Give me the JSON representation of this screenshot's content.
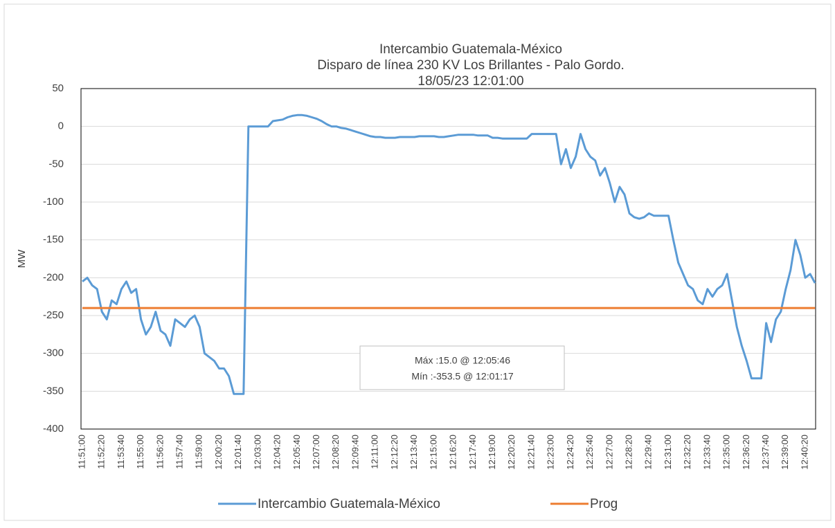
{
  "chart_data": {
    "type": "line",
    "title": "Intercambio Guatemala-México",
    "subtitle": [
      "Disparo de línea 230 KV Los Brillantes - Palo Gordo.",
      "18/05/23 12:01:00"
    ],
    "y_label": "MW",
    "annotations": [
      "Máx :15.0 @ 12:05:46",
      "Mín :-353.5 @ 12:01:17"
    ],
    "categories": [
      "11:51:00",
      null,
      null,
      null,
      "11:52:20",
      null,
      null,
      null,
      "11:53:40",
      null,
      null,
      null,
      "11:55:00",
      null,
      null,
      null,
      "11:56:20",
      null,
      null,
      null,
      "11:57:40",
      null,
      null,
      null,
      "11:59:00",
      null,
      null,
      null,
      "12:00:20",
      null,
      null,
      null,
      "12:01:40",
      null,
      null,
      null,
      "12:03:00",
      null,
      null,
      null,
      "12:04:20",
      null,
      null,
      null,
      "12:05:40",
      null,
      null,
      null,
      "12:07:00",
      null,
      null,
      null,
      "12:08:20",
      null,
      null,
      null,
      "12:09:40",
      null,
      null,
      null,
      "12:11:00",
      null,
      null,
      null,
      "12:12:20",
      null,
      null,
      null,
      "12:13:40",
      null,
      null,
      null,
      "12:15:00",
      null,
      null,
      null,
      "12:16:20",
      null,
      null,
      null,
      "12:17:40",
      null,
      null,
      null,
      "12:19:00",
      null,
      null,
      null,
      "12:20:20",
      null,
      null,
      null,
      "12:21:40",
      null,
      null,
      null,
      "12:23:00",
      null,
      null,
      null,
      "12:24:20",
      null,
      null,
      null,
      "12:25:40",
      null,
      null,
      null,
      "12:27:00",
      null,
      null,
      null,
      "12:28:20",
      null,
      null,
      null,
      "12:29:40",
      null,
      null,
      null,
      "12:31:00",
      null,
      null,
      null,
      "12:32:20",
      null,
      null,
      null,
      "12:33:40",
      null,
      null,
      null,
      "12:35:00",
      null,
      null,
      null,
      "12:36:20",
      null,
      null,
      null,
      "12:37:40",
      null,
      null,
      null,
      "12:39:00",
      null,
      null,
      null,
      "12:40:20",
      null,
      null
    ],
    "series": [
      {
        "name": "Intercambio Guatemala-México",
        "color": "#5b9bd5",
        "values": [
          -205,
          -200,
          -210,
          -215,
          -245,
          -255,
          -230,
          -235,
          -215,
          -205,
          -220,
          -215,
          -255,
          -275,
          -265,
          -245,
          -270,
          -275,
          -290,
          -255,
          -260,
          -265,
          -255,
          -250,
          -265,
          -300,
          -305,
          -310,
          -320,
          -320,
          -330,
          -353.5,
          -353.5,
          -353.5,
          0,
          0,
          0,
          0,
          0,
          7,
          8,
          9,
          12,
          14,
          15,
          15,
          14,
          12,
          10,
          7,
          3,
          0,
          0,
          -2,
          -3,
          -5,
          -7,
          -9,
          -11,
          -13,
          -14,
          -14,
          -15,
          -15,
          -15,
          -14,
          -14,
          -14,
          -14,
          -13,
          -13,
          -13,
          -13,
          -14,
          -14,
          -13,
          -12,
          -11,
          -11,
          -11,
          -11,
          -12,
          -12,
          -12,
          -15,
          -15,
          -16,
          -16,
          -16,
          -16,
          -16,
          -16,
          -10,
          -10,
          -10,
          -10,
          -10,
          -10,
          -50,
          -30,
          -55,
          -40,
          -10,
          -30,
          -40,
          -45,
          -65,
          -55,
          -75,
          -100,
          -80,
          -90,
          -115,
          -120,
          -122,
          -120,
          -115,
          -118,
          -118,
          -118,
          -118,
          -150,
          -180,
          -195,
          -210,
          -215,
          -230,
          -235,
          -215,
          -225,
          -215,
          -210,
          -195,
          -230,
          -265,
          -290,
          -310,
          -333,
          -333,
          -333,
          -260,
          -285,
          -255,
          -245,
          -215,
          -190,
          -150,
          -170,
          -200,
          -195,
          -207
        ]
      },
      {
        "name": "Prog",
        "color": "#ed7d31",
        "values": [
          -240,
          -240,
          -240,
          -240,
          -240,
          -240,
          -240,
          -240,
          -240,
          -240,
          -240,
          -240,
          -240,
          -240,
          -240,
          -240,
          -240,
          -240,
          -240,
          -240,
          -240,
          -240,
          -240,
          -240,
          -240,
          -240,
          -240,
          -240,
          -240,
          -240,
          -240,
          -240,
          -240,
          -240,
          -240,
          -240,
          -240,
          -240,
          -240,
          -240,
          -240,
          -240,
          -240,
          -240,
          -240,
          -240,
          -240,
          -240,
          -240,
          -240,
          -240,
          -240,
          -240,
          -240,
          -240,
          -240,
          -240,
          -240,
          -240,
          -240,
          -240,
          -240,
          -240,
          -240,
          -240,
          -240,
          -240,
          -240,
          -240,
          -240,
          -240,
          -240,
          -240,
          -240,
          -240,
          -240,
          -240,
          -240,
          -240,
          -240,
          -240,
          -240,
          -240,
          -240,
          -240,
          -240,
          -240,
          -240,
          -240,
          -240,
          -240,
          -240,
          -240,
          -240,
          -240,
          -240,
          -240,
          -240,
          -240,
          -240,
          -240,
          -240,
          -240,
          -240,
          -240,
          -240,
          -240,
          -240,
          -240,
          -240,
          -240,
          -240,
          -240,
          -240,
          -240,
          -240,
          -240,
          -240,
          -240,
          -240,
          -240,
          -240,
          -240,
          -240,
          -240,
          -240,
          -240,
          -240,
          -240,
          -240,
          -240,
          -240,
          -240,
          -240,
          -240,
          -240,
          -240,
          -240,
          -240,
          -240,
          -240,
          -240,
          -240,
          -240,
          -240,
          -240,
          -240,
          -240,
          -240,
          -240,
          -240
        ]
      }
    ],
    "ylim": [
      -400,
      50
    ],
    "yticks": [
      -400,
      -350,
      -300,
      -250,
      -200,
      -150,
      -100,
      -50,
      0,
      50
    ],
    "grid": true,
    "legend": "bottom"
  }
}
